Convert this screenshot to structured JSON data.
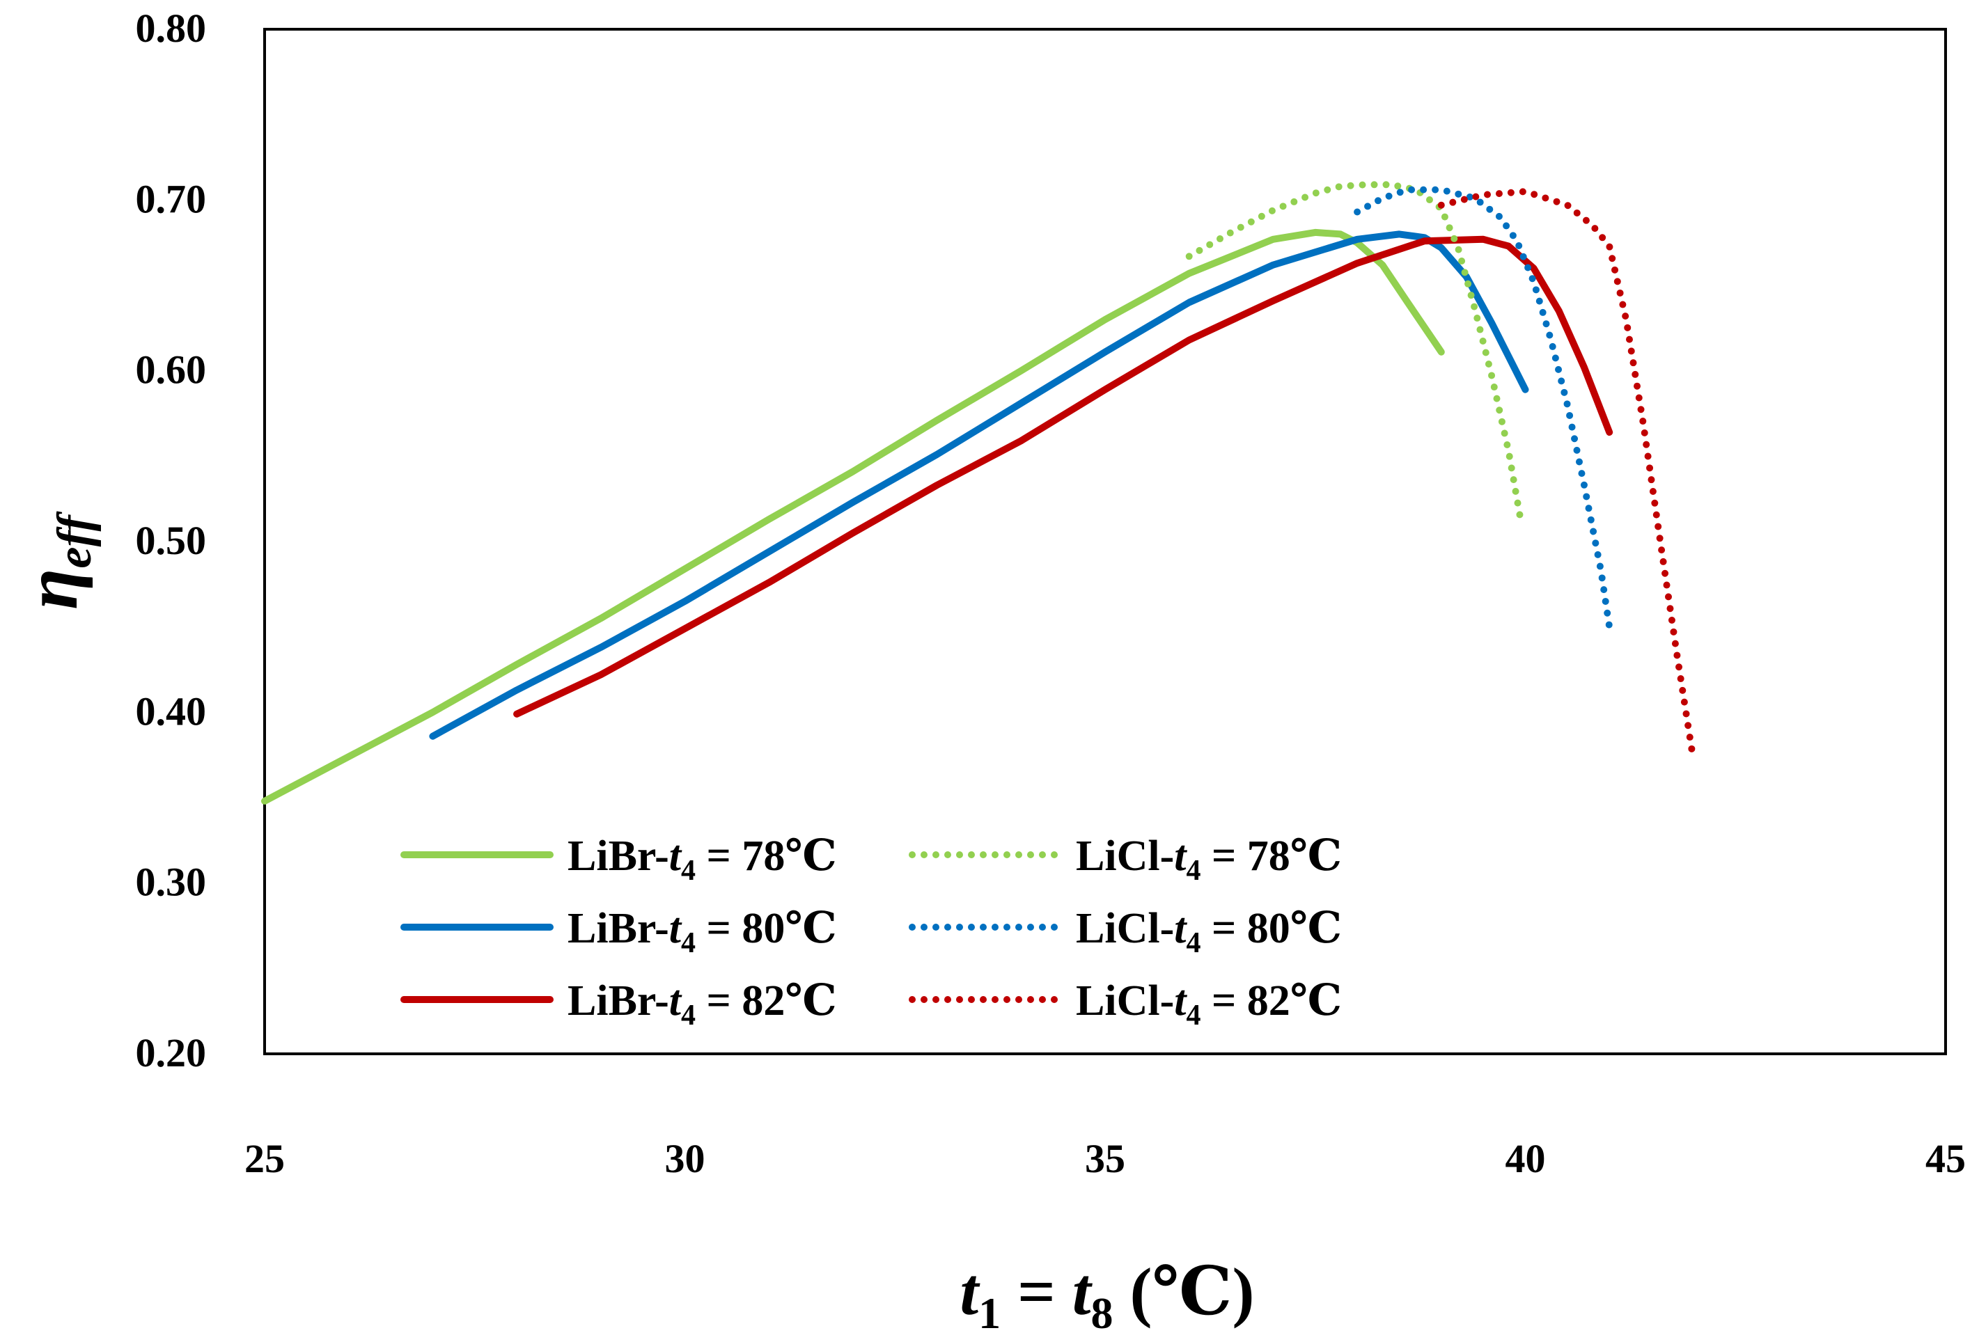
{
  "chart_data": {
    "type": "line",
    "title": "",
    "xlabel": {
      "var1": "t",
      "sub1": "1",
      "eq": " = ",
      "var2": "t",
      "sub2": "8",
      "unit": " (℃)"
    },
    "ylabel": {
      "var": "η",
      "sub": "eff"
    },
    "xlim": [
      25,
      45
    ],
    "ylim": [
      0.2,
      0.8
    ],
    "x_ticks": [
      25,
      30,
      35,
      40,
      45
    ],
    "x_tick_labels": [
      "25",
      "30",
      "35",
      "40",
      "45"
    ],
    "y_ticks": [
      0.2,
      0.3,
      0.4,
      0.5,
      0.6,
      0.7,
      0.8
    ],
    "y_tick_labels": [
      "0.20",
      "0.30",
      "0.40",
      "0.50",
      "0.60",
      "0.70",
      "0.80"
    ],
    "grid": false,
    "legend_position": "bottom-left",
    "series": [
      {
        "name": "LiBr-t4 = 78℃",
        "label_prefix": "LiBr-",
        "label_var": "t",
        "label_sub": "4",
        "label_suffix": " = 78℃",
        "color": "#92d050",
        "style": "solid",
        "x": [
          25,
          26,
          27,
          28,
          29,
          30,
          31,
          32,
          33,
          34,
          35,
          36,
          37,
          37.5,
          37.8,
          38.0,
          38.3,
          38.6,
          39.0
        ],
        "y": [
          0.348,
          0.374,
          0.4,
          0.428,
          0.455,
          0.484,
          0.513,
          0.541,
          0.571,
          0.6,
          0.63,
          0.657,
          0.677,
          0.681,
          0.68,
          0.675,
          0.662,
          0.64,
          0.611
        ]
      },
      {
        "name": "LiBr-t4 = 80℃",
        "label_prefix": "LiBr-",
        "label_var": "t",
        "label_sub": "4",
        "label_suffix": " = 80℃",
        "color": "#0070c0",
        "style": "solid",
        "x": [
          27,
          28,
          29,
          30,
          31,
          32,
          33,
          34,
          35,
          36,
          37,
          38,
          38.5,
          38.8,
          39.0,
          39.3,
          39.6,
          40.0
        ],
        "y": [
          0.386,
          0.413,
          0.438,
          0.465,
          0.494,
          0.523,
          0.551,
          0.581,
          0.611,
          0.64,
          0.662,
          0.677,
          0.68,
          0.678,
          0.672,
          0.655,
          0.628,
          0.589
        ]
      },
      {
        "name": "LiBr-t4 = 82℃",
        "label_prefix": "LiBr-",
        "label_var": "t",
        "label_sub": "4",
        "label_suffix": " = 82℃",
        "color": "#c00000",
        "style": "solid",
        "x": [
          28,
          29,
          30,
          31,
          32,
          33,
          34,
          35,
          36,
          37,
          38,
          38.8,
          39.5,
          39.8,
          40.1,
          40.4,
          40.7,
          41.0
        ],
        "y": [
          0.399,
          0.422,
          0.449,
          0.476,
          0.505,
          0.533,
          0.559,
          0.589,
          0.618,
          0.641,
          0.663,
          0.676,
          0.677,
          0.673,
          0.66,
          0.635,
          0.602,
          0.564
        ]
      },
      {
        "name": "LiCl-t4 = 78℃",
        "label_prefix": "LiCl-",
        "label_var": "t",
        "label_sub": "4",
        "label_suffix": " = 78℃",
        "color": "#92d050",
        "style": "dotted",
        "x": [
          36,
          36.5,
          37,
          37.5,
          37.8,
          38.1,
          38.4,
          38.7,
          39.0,
          39.2,
          39.4,
          39.6,
          39.8,
          39.95
        ],
        "y": [
          0.667,
          0.681,
          0.694,
          0.704,
          0.708,
          0.709,
          0.709,
          0.706,
          0.695,
          0.672,
          0.636,
          0.597,
          0.553,
          0.511
        ]
      },
      {
        "name": "LiCl-t4 = 80℃",
        "label_prefix": "LiCl-",
        "label_var": "t",
        "label_sub": "4",
        "label_suffix": " = 80℃",
        "color": "#0070c0",
        "style": "dotted",
        "x": [
          38,
          38.3,
          38.6,
          39.0,
          39.4,
          39.7,
          39.9,
          40.1,
          40.3,
          40.5,
          40.7,
          40.9,
          41.0
        ],
        "y": [
          0.693,
          0.701,
          0.706,
          0.706,
          0.701,
          0.69,
          0.676,
          0.652,
          0.619,
          0.58,
          0.533,
          0.483,
          0.45
        ]
      },
      {
        "name": "LiCl-t4 = 82℃",
        "label_prefix": "LiCl-",
        "label_var": "t",
        "label_sub": "4",
        "label_suffix": " = 82℃",
        "color": "#c00000",
        "style": "dotted",
        "x": [
          39,
          39.5,
          40.0,
          40.5,
          40.8,
          41.0,
          41.2,
          41.4,
          41.6,
          41.8,
          42.0
        ],
        "y": [
          0.697,
          0.703,
          0.705,
          0.697,
          0.685,
          0.673,
          0.63,
          0.57,
          0.502,
          0.435,
          0.372
        ]
      }
    ]
  }
}
